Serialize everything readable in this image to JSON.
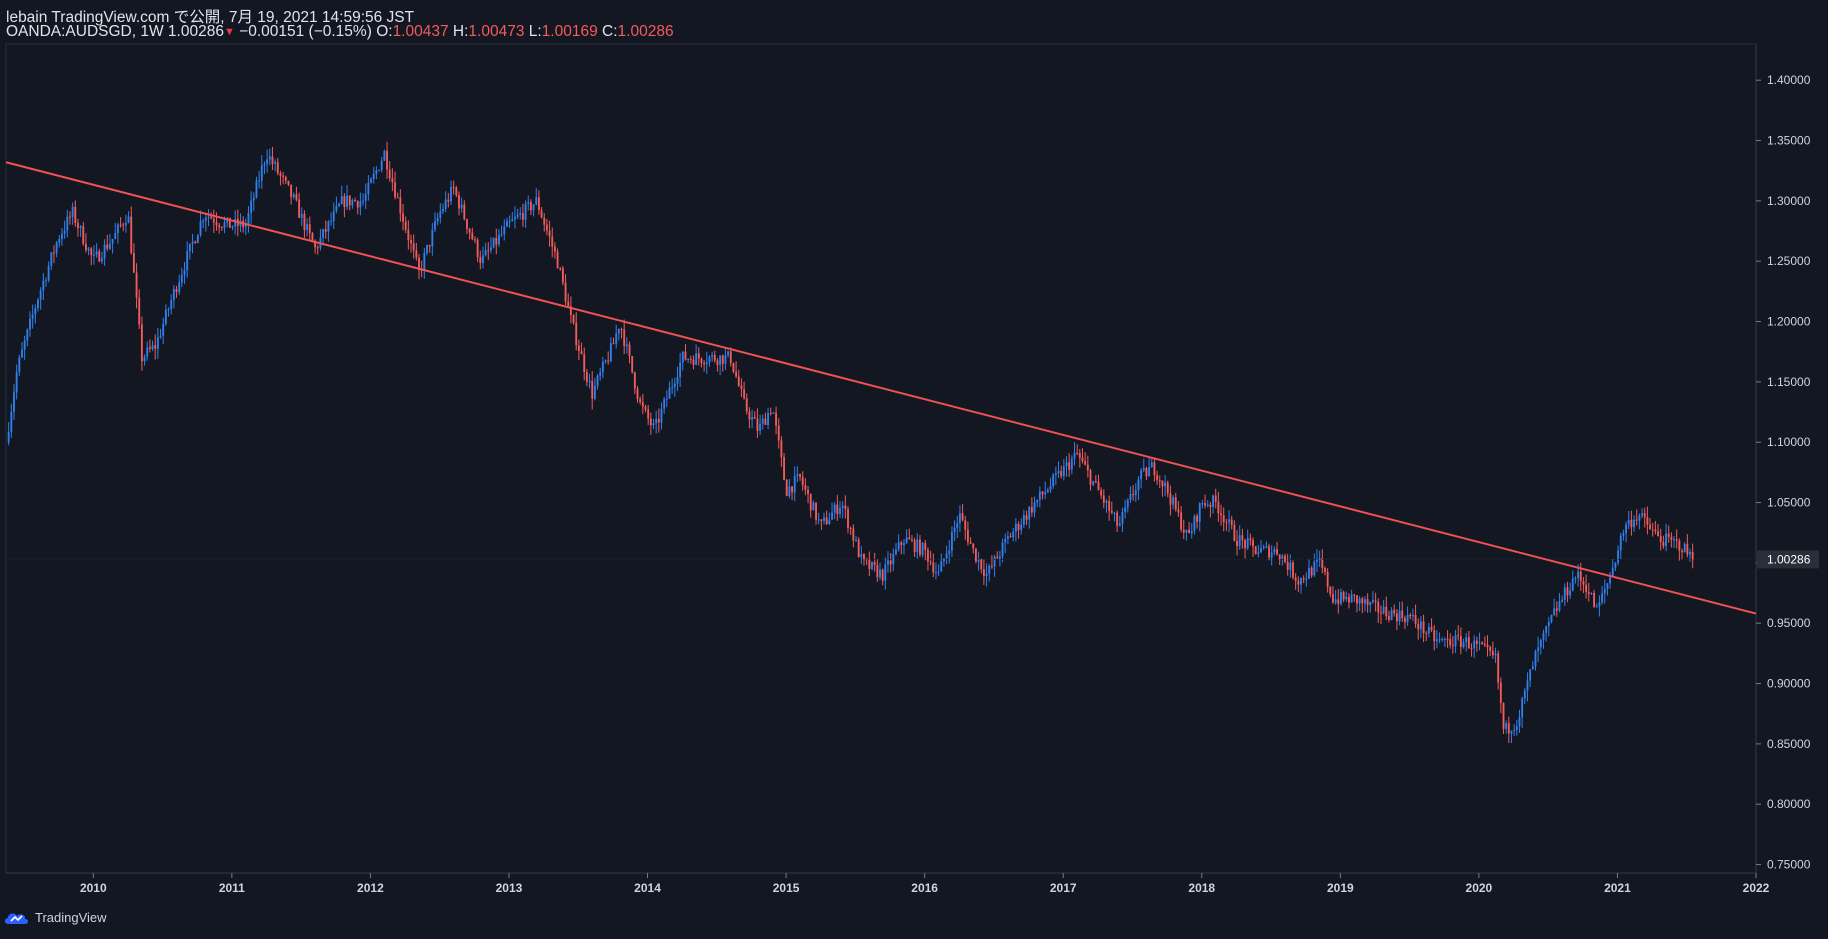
{
  "header": {
    "line1": "lebain TradingView.com で公開, 7月 19, 2021 14:59:56 JST",
    "symbol": "OANDA:AUDSGD, 1W",
    "last": "1.00286",
    "down_marker": "▼",
    "change": "−0.00151 (−0.15%)",
    "o_label": "O:",
    "o": "1.00437",
    "h_label": "H:",
    "h": "1.00473",
    "l_label": "L:",
    "l": "1.00169",
    "c_label": "C:",
    "c": "1.00286"
  },
  "footer": {
    "brand": "TradingView"
  },
  "colors": {
    "background": "#131722",
    "up": "#2f80ed",
    "down": "#f45b5b",
    "trendline": "#f05252",
    "text": "#d1d4dc",
    "axis": "#787b86"
  },
  "chart_data": {
    "type": "candlestick",
    "timeframe": "1W",
    "x_ticks": [
      "2010",
      "2011",
      "2012",
      "2013",
      "2014",
      "2015",
      "2016",
      "2017",
      "2018",
      "2019",
      "2020",
      "2021",
      "2022"
    ],
    "x_range": [
      2009.37,
      2022.0
    ],
    "y_ticks": [
      "1.40000",
      "1.35000",
      "1.30000",
      "1.25000",
      "1.20000",
      "1.15000",
      "1.10000",
      "1.05000",
      "1.00000",
      "0.95000",
      "0.90000",
      "0.85000",
      "0.80000",
      "0.75000"
    ],
    "ylim": [
      0.743,
      1.43
    ],
    "last_price_label": "1.00286",
    "trendline": {
      "start": [
        2009.37,
        1.332
      ],
      "end": [
        2022.0,
        0.958
      ]
    },
    "price_path": [
      [
        2009.37,
        1.1
      ],
      [
        2009.45,
        1.16
      ],
      [
        2009.6,
        1.22
      ],
      [
        2009.75,
        1.27
      ],
      [
        2009.85,
        1.29
      ],
      [
        2010.0,
        1.25
      ],
      [
        2010.15,
        1.27
      ],
      [
        2010.25,
        1.29
      ],
      [
        2010.35,
        1.17
      ],
      [
        2010.45,
        1.18
      ],
      [
        2010.6,
        1.23
      ],
      [
        2010.8,
        1.29
      ],
      [
        2010.95,
        1.28
      ],
      [
        2011.1,
        1.28
      ],
      [
        2011.25,
        1.34
      ],
      [
        2011.45,
        1.3
      ],
      [
        2011.6,
        1.26
      ],
      [
        2011.8,
        1.3
      ],
      [
        2011.95,
        1.3
      ],
      [
        2012.1,
        1.34
      ],
      [
        2012.25,
        1.28
      ],
      [
        2012.35,
        1.24
      ],
      [
        2012.5,
        1.29
      ],
      [
        2012.6,
        1.31
      ],
      [
        2012.8,
        1.25
      ],
      [
        2013.0,
        1.28
      ],
      [
        2013.2,
        1.3
      ],
      [
        2013.35,
        1.25
      ],
      [
        2013.45,
        1.2
      ],
      [
        2013.6,
        1.14
      ],
      [
        2013.75,
        1.18
      ],
      [
        2013.8,
        1.2
      ],
      [
        2013.95,
        1.13
      ],
      [
        2014.05,
        1.11
      ],
      [
        2014.25,
        1.17
      ],
      [
        2014.45,
        1.17
      ],
      [
        2014.6,
        1.17
      ],
      [
        2014.7,
        1.13
      ],
      [
        2014.8,
        1.11
      ],
      [
        2014.9,
        1.13
      ],
      [
        2015.0,
        1.06
      ],
      [
        2015.1,
        1.07
      ],
      [
        2015.25,
        1.03
      ],
      [
        2015.4,
        1.05
      ],
      [
        2015.55,
        1.0
      ],
      [
        2015.7,
        0.99
      ],
      [
        2015.85,
        1.02
      ],
      [
        2016.0,
        1.01
      ],
      [
        2016.1,
        0.99
      ],
      [
        2016.25,
        1.04
      ],
      [
        2016.35,
        1.01
      ],
      [
        2016.45,
        0.99
      ],
      [
        2016.6,
        1.02
      ],
      [
        2016.8,
        1.05
      ],
      [
        2016.95,
        1.07
      ],
      [
        2017.1,
        1.09
      ],
      [
        2017.25,
        1.06
      ],
      [
        2017.4,
        1.03
      ],
      [
        2017.55,
        1.07
      ],
      [
        2017.65,
        1.08
      ],
      [
        2017.75,
        1.06
      ],
      [
        2017.9,
        1.02
      ],
      [
        2018.0,
        1.05
      ],
      [
        2018.1,
        1.05
      ],
      [
        2018.25,
        1.02
      ],
      [
        2018.4,
        1.01
      ],
      [
        2018.55,
        1.01
      ],
      [
        2018.7,
        0.985
      ],
      [
        2018.85,
        1.0
      ],
      [
        2018.95,
        0.97
      ],
      [
        2019.1,
        0.97
      ],
      [
        2019.3,
        0.96
      ],
      [
        2019.5,
        0.955
      ],
      [
        2019.7,
        0.935
      ],
      [
        2019.9,
        0.935
      ],
      [
        2020.0,
        0.93
      ],
      [
        2020.12,
        0.92
      ],
      [
        2020.18,
        0.86
      ],
      [
        2020.28,
        0.87
      ],
      [
        2020.4,
        0.92
      ],
      [
        2020.55,
        0.96
      ],
      [
        2020.7,
        0.99
      ],
      [
        2020.78,
        0.98
      ],
      [
        2020.85,
        0.96
      ],
      [
        2020.95,
        0.99
      ],
      [
        2021.05,
        1.03
      ],
      [
        2021.15,
        1.04
      ],
      [
        2021.3,
        1.02
      ],
      [
        2021.45,
        1.015
      ],
      [
        2021.55,
        1.003
      ]
    ]
  }
}
